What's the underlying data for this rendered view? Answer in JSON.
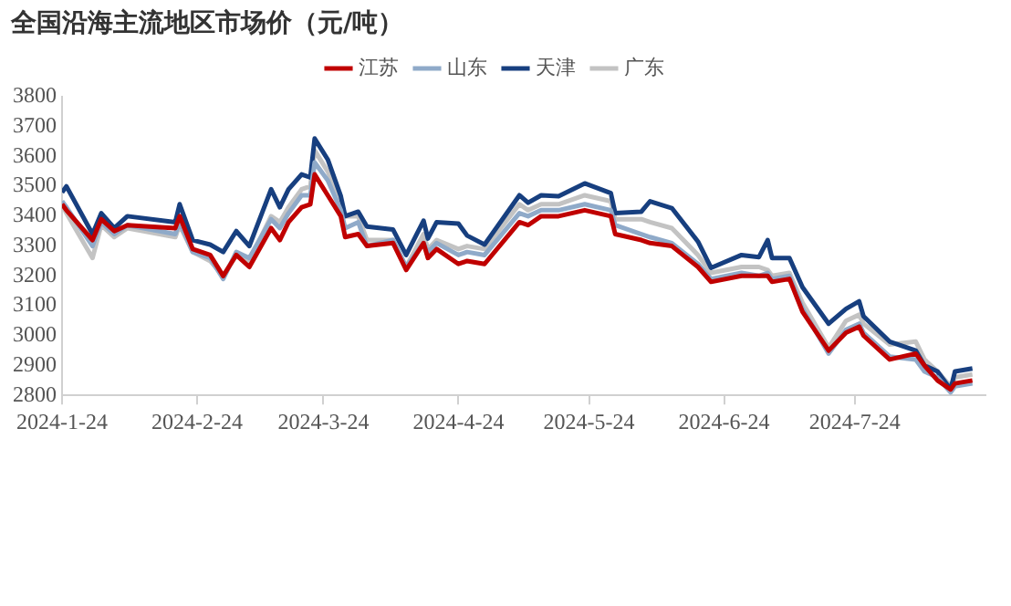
{
  "chart_data": {
    "type": "line",
    "title": "全国沿海主流地区市场价（元/吨）",
    "x": [
      "2024-01-24",
      "2024-01-25",
      "2024-01-31",
      "2024-02-02",
      "2024-02-05",
      "2024-02-08",
      "2024-02-19",
      "2024-02-20",
      "2024-02-23",
      "2024-02-27",
      "2024-03-01",
      "2024-03-04",
      "2024-03-07",
      "2024-03-12",
      "2024-03-14",
      "2024-03-16",
      "2024-03-19",
      "2024-03-21",
      "2024-03-22",
      "2024-03-25",
      "2024-03-28",
      "2024-03-29",
      "2024-04-01",
      "2024-04-03",
      "2024-04-09",
      "2024-04-12",
      "2024-04-16",
      "2024-04-17",
      "2024-04-19",
      "2024-04-24",
      "2024-04-26",
      "2024-04-30",
      "2024-05-08",
      "2024-05-10",
      "2024-05-13",
      "2024-05-17",
      "2024-05-23",
      "2024-05-29",
      "2024-05-30",
      "2024-06-05",
      "2024-06-07",
      "2024-06-12",
      "2024-06-18",
      "2024-06-21",
      "2024-06-28",
      "2024-07-02",
      "2024-07-04",
      "2024-07-05",
      "2024-07-09",
      "2024-07-12",
      "2024-07-18",
      "2024-07-22",
      "2024-07-25",
      "2024-07-26",
      "2024-08-01",
      "2024-08-07",
      "2024-08-09",
      "2024-08-12",
      "2024-08-15",
      "2024-08-16",
      "2024-08-20"
    ],
    "series": [
      {
        "name": "江苏",
        "color": "#c00000",
        "values": [
          3440,
          3420,
          3320,
          3390,
          3350,
          3370,
          3360,
          3400,
          3290,
          3270,
          3200,
          3270,
          3230,
          3360,
          3320,
          3380,
          3430,
          3440,
          3540,
          3470,
          3400,
          3330,
          3340,
          3300,
          3310,
          3220,
          3310,
          3260,
          3290,
          3240,
          3250,
          3240,
          3380,
          3370,
          3400,
          3400,
          3420,
          3400,
          3340,
          3320,
          3310,
          3300,
          3230,
          3180,
          3200,
          3200,
          3200,
          3180,
          3190,
          3080,
          2950,
          3010,
          3030,
          3000,
          2920,
          2940,
          2900,
          2850,
          2820,
          2840,
          2850
        ]
      },
      {
        "name": "山东",
        "color": "#8faac9",
        "values": [
          3450,
          3430,
          3300,
          3380,
          3340,
          3370,
          3340,
          3380,
          3280,
          3260,
          3190,
          3280,
          3260,
          3390,
          3360,
          3410,
          3470,
          3470,
          3580,
          3520,
          3420,
          3360,
          3380,
          3300,
          3320,
          3230,
          3310,
          3280,
          3310,
          3270,
          3280,
          3270,
          3410,
          3400,
          3420,
          3420,
          3440,
          3420,
          3370,
          3340,
          3330,
          3310,
          3240,
          3190,
          3210,
          3200,
          3210,
          3190,
          3200,
          3090,
          2940,
          3020,
          3040,
          3010,
          2930,
          2920,
          2880,
          2860,
          2810,
          2830,
          2840
        ]
      },
      {
        "name": "天津",
        "color": "#173f7f",
        "values": [
          3480,
          3500,
          3340,
          3410,
          3360,
          3400,
          3380,
          3440,
          3320,
          3305,
          3280,
          3350,
          3300,
          3490,
          3430,
          3490,
          3540,
          3530,
          3660,
          3590,
          3467,
          3400,
          3415,
          3365,
          3355,
          3270,
          3385,
          3325,
          3380,
          3375,
          3335,
          3305,
          3470,
          3445,
          3470,
          3467,
          3510,
          3477,
          3410,
          3415,
          3450,
          3427,
          3315,
          3227,
          3270,
          3263,
          3320,
          3260,
          3260,
          3162,
          3040,
          3090,
          3115,
          3065,
          2980,
          2950,
          2900,
          2880,
          2820,
          2880,
          2890
        ]
      },
      {
        "name": "广东",
        "color": "#c3c3c3",
        "values": [
          3440,
          3410,
          3260,
          3370,
          3330,
          3360,
          3330,
          3370,
          3280,
          3250,
          3200,
          3270,
          3250,
          3400,
          3380,
          3430,
          3490,
          3500,
          3620,
          3550,
          3440,
          3400,
          3400,
          3320,
          3320,
          3230,
          3340,
          3290,
          3320,
          3290,
          3300,
          3290,
          3440,
          3420,
          3440,
          3440,
          3470,
          3450,
          3390,
          3390,
          3380,
          3360,
          3270,
          3210,
          3230,
          3230,
          3220,
          3200,
          3210,
          3110,
          2960,
          3050,
          3070,
          3040,
          2970,
          2980,
          2920,
          2880,
          2830,
          2860,
          2870
        ]
      }
    ],
    "xlim": [
      "2024-01-24",
      "2024-08-23"
    ],
    "xticks": [
      {
        "value": "2024-01-24",
        "label": "2024-1-24"
      },
      {
        "value": "2024-02-24",
        "label": "2024-2-24"
      },
      {
        "value": "2024-03-24",
        "label": "2024-3-24"
      },
      {
        "value": "2024-04-24",
        "label": "2024-4-24"
      },
      {
        "value": "2024-05-24",
        "label": "2024-5-24"
      },
      {
        "value": "2024-06-24",
        "label": "2024-6-24"
      },
      {
        "value": "2024-07-24",
        "label": "2024-7-24"
      }
    ],
    "ylim": [
      2800,
      3800
    ],
    "yticks": [
      2800,
      2900,
      3000,
      3100,
      3200,
      3300,
      3400,
      3500,
      3600,
      3700,
      3800
    ],
    "legend": "top",
    "grid": false,
    "marker": "none",
    "line_style": "solid"
  }
}
